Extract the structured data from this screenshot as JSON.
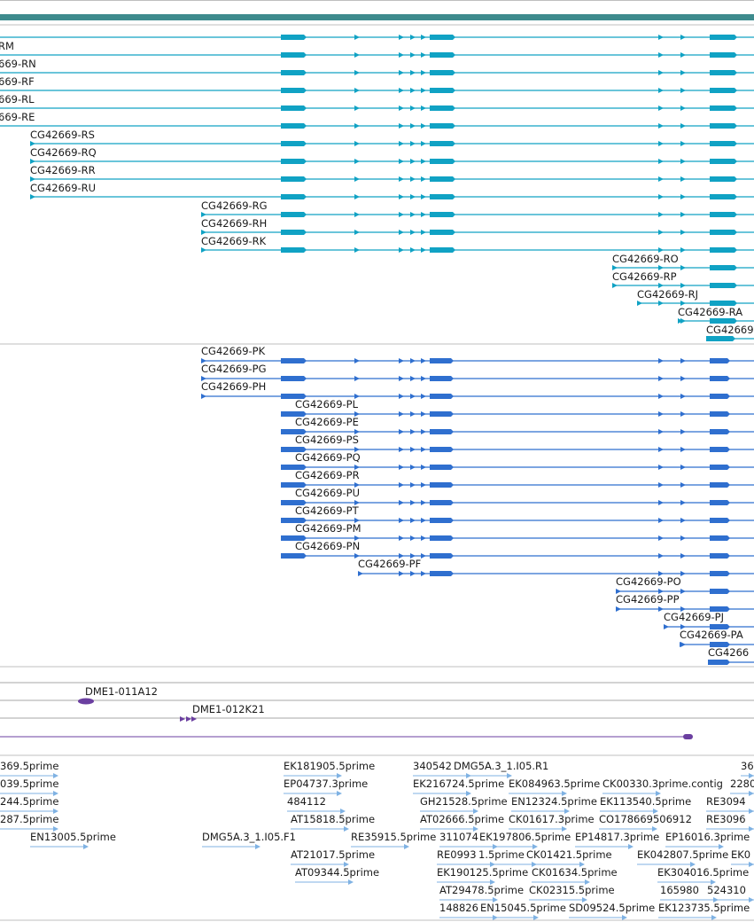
{
  "colors": {
    "header_bar": "#3e8b8d",
    "transcript_rna": "#10a2c4",
    "transcript_protein": "#2f6fcf",
    "clone": "#6b3fa0",
    "est": "#7fb2e3",
    "separator": "#bfbfbf"
  },
  "rna_transcripts": [
    "RM",
    "669-RN",
    "669-RF",
    "669-RL",
    "669-RE",
    "CG42669-RS",
    "CG42669-RQ",
    "CG42669-RR",
    "CG42669-RU",
    "CG42669-RG",
    "CG42669-RH",
    "CG42669-RK",
    "CG42669-RO",
    "CG42669-RP",
    "CG42669-RJ",
    "CG42669-RA",
    "CG42669"
  ],
  "protein_transcripts": [
    "CG42669-PK",
    "CG42669-PG",
    "CG42669-PH",
    "CG42669-PL",
    "CG42669-PE",
    "CG42669-PS",
    "CG42669-PQ",
    "CG42669-PR",
    "CG42669-PU",
    "CG42669-PT",
    "CG42669-PM",
    "CG42669-PN",
    "CG42669-PF",
    "CG42669-PO",
    "CG42669-PP",
    "CG42669-PJ",
    "CG42669-PA",
    "CG4266"
  ],
  "clones": [
    "DME1-011A12",
    "DME1-012K21"
  ],
  "ests": [
    "369.5prime",
    "EK181905.5prime",
    "340542",
    "DMG5A.3_1.I05.R1",
    "36",
    "039.5prime",
    "EP04737.3prime",
    "EK216724.5prime",
    "EK084963.5prime",
    "CK00330.3prime.contig",
    "2280",
    "244.5prime",
    "484112",
    "GH21528.5prime",
    "EN12324.5prime",
    "EK113540.5prime",
    "RE3094",
    "287.5prime",
    "AT15818.5prime",
    "AT02666.5prime",
    "CK01617.3prime",
    "CO178669506912",
    "RE3096",
    "EN13005.5prime",
    "DMG5A.3_1.I05.F1",
    "RE35915.5prime",
    "311074",
    "EK197806.5prime",
    "EP14817.3prime",
    "EP16016.3prime",
    "AT21017.5prime",
    "RE0993",
    "1.5prime",
    "CK01421.5prime",
    "EK042807.5prime",
    "EK0",
    "AT09344.5prime",
    "EK190125.5prime",
    "CK01634.5prime",
    "EK304016.5prime",
    "AT29478.5prime",
    "CK02315.5prime",
    "165980",
    "524310",
    "148826",
    "EN15045.5prime",
    "SD09524.5prime",
    "EK123735.5prime"
  ]
}
